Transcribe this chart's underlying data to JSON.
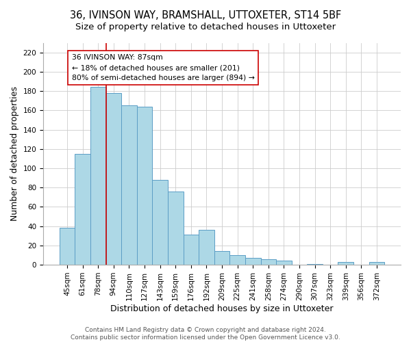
{
  "title": "36, IVINSON WAY, BRAMSHALL, UTTOXETER, ST14 5BF",
  "subtitle": "Size of property relative to detached houses in Uttoxeter",
  "xlabel": "Distribution of detached houses by size in Uttoxeter",
  "ylabel": "Number of detached properties",
  "categories": [
    "45sqm",
    "61sqm",
    "78sqm",
    "94sqm",
    "110sqm",
    "127sqm",
    "143sqm",
    "159sqm",
    "176sqm",
    "192sqm",
    "209sqm",
    "225sqm",
    "241sqm",
    "258sqm",
    "274sqm",
    "290sqm",
    "307sqm",
    "323sqm",
    "339sqm",
    "356sqm",
    "372sqm"
  ],
  "values": [
    38,
    115,
    184,
    178,
    165,
    164,
    88,
    76,
    31,
    36,
    14,
    10,
    7,
    6,
    4,
    0,
    1,
    0,
    3,
    0,
    3
  ],
  "bar_color": "#add8e6",
  "bar_edge_color": "#5b9dc5",
  "vline_x_index": 2.5,
  "vline_color": "#cc0000",
  "annotation_text": "36 IVINSON WAY: 87sqm\n← 18% of detached houses are smaller (201)\n80% of semi-detached houses are larger (894) →",
  "annotation_box_color": "white",
  "annotation_box_edge_color": "#cc0000",
  "ylim": [
    0,
    230
  ],
  "yticks": [
    0,
    20,
    40,
    60,
    80,
    100,
    120,
    140,
    160,
    180,
    200,
    220
  ],
  "footer_line1": "Contains HM Land Registry data © Crown copyright and database right 2024.",
  "footer_line2": "Contains public sector information licensed under the Open Government Licence v3.0.",
  "title_fontsize": 10.5,
  "subtitle_fontsize": 9.5,
  "axis_label_fontsize": 9,
  "tick_fontsize": 7.5,
  "footer_fontsize": 6.5,
  "annotation_fontsize": 7.8
}
